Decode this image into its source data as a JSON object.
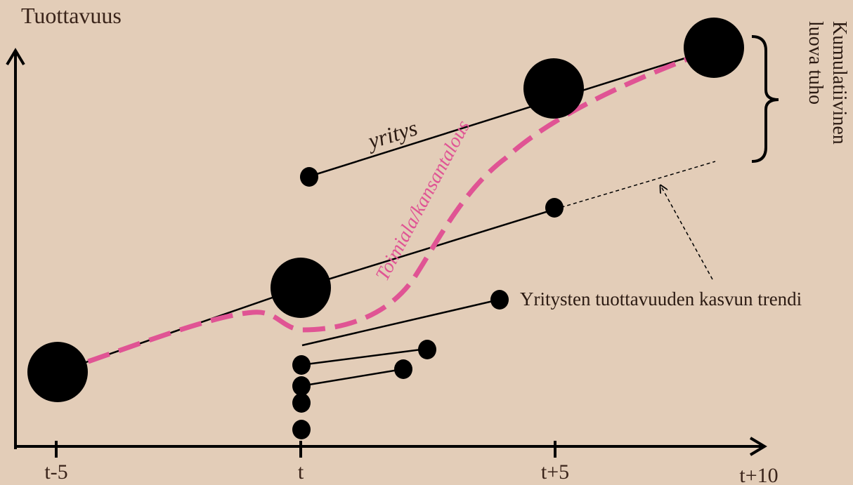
{
  "y_axis_label": "Tuottavuus",
  "x_ticks": [
    "t-5",
    "t",
    "t+5",
    "t+10"
  ],
  "labels": {
    "firm": "yritys",
    "industry": "Toimiala/kansantalous",
    "trend": "Yritysten tuottavuuden kasvun trendi",
    "cumulative_line1": "Kumulatiivinen",
    "cumulative_line2": "luova tuho"
  },
  "colors": {
    "background": "#e3cdb8",
    "industry_curve": "#e05494",
    "firm": "#000000"
  }
}
